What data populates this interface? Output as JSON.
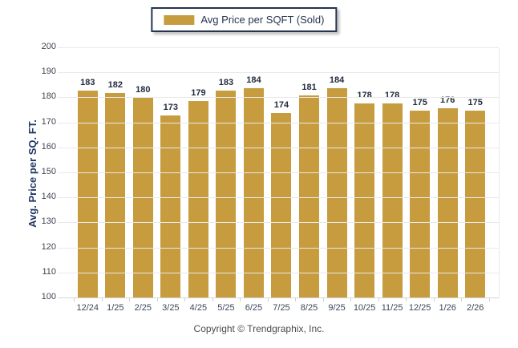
{
  "legend": {
    "label": "Avg Price per SQFT (Sold)"
  },
  "footer": {
    "copyright": "Copyright © Trendgraphix, Inc."
  },
  "colors": {
    "bar": "#C69C3E",
    "legend_border": "#26354E",
    "axis_title": "#1F3864",
    "value_label": "#222D3D",
    "tick_label": "#3C4858",
    "gridline": "#E9E9E9",
    "footer_text": "#4D4D4D"
  },
  "chart_data": {
    "type": "bar",
    "title": "Avg Price per SQFT (Sold)",
    "categories": [
      "12/24",
      "1/25",
      "2/25",
      "3/25",
      "4/25",
      "5/25",
      "6/25",
      "7/25",
      "8/25",
      "9/25",
      "10/25",
      "11/25",
      "12/25",
      "1/26",
      "2/26"
    ],
    "values": [
      183,
      182,
      180,
      173,
      179,
      183,
      184,
      174,
      181,
      184,
      178,
      178,
      175,
      176,
      175
    ],
    "xlabel": "",
    "ylabel": "Avg. Price per SQ. FT.",
    "ylim": [
      100,
      200
    ],
    "ytick_step": 10,
    "grid": "horizontal",
    "legend_position": "top-center",
    "bar_color": "#C69C3E",
    "value_labels": true
  }
}
